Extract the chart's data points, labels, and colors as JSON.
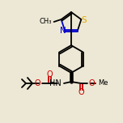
{
  "bg_color": "#ede8d5",
  "line_color": "#000000",
  "n_color": "#0000cc",
  "s_color": "#ddaa00",
  "o_color": "#cc0000",
  "line_width": 1.3,
  "font_size": 7.0,
  "fig_w": 1.52,
  "fig_h": 1.52,
  "dpi": 100,
  "xlim": [
    0,
    152
  ],
  "ylim": [
    0,
    152
  ]
}
